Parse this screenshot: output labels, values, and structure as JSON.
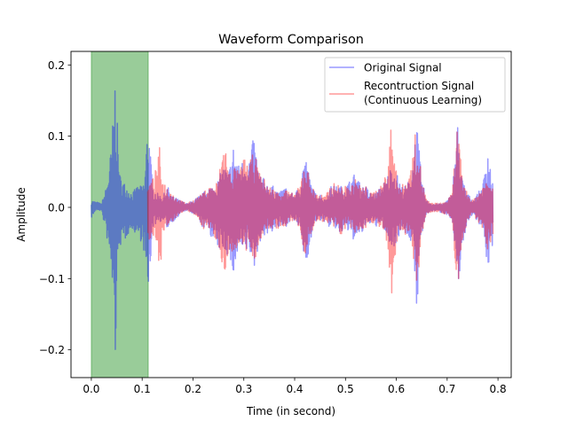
{
  "chart_data": {
    "type": "line",
    "title": "Waveform Comparison",
    "xlabel": "Time (in second)",
    "ylabel": "Amplitude",
    "xlim": [
      -0.04,
      0.826
    ],
    "ylim": [
      -0.239,
      0.219
    ],
    "xticks": [
      0.0,
      0.1,
      0.2,
      0.3,
      0.4,
      0.5,
      0.6,
      0.7,
      0.8
    ],
    "xtick_labels": [
      "0.0",
      "0.1",
      "0.2",
      "0.3",
      "0.4",
      "0.5",
      "0.6",
      "0.7",
      "0.8"
    ],
    "yticks": [
      -0.2,
      -0.1,
      0.0,
      0.1,
      0.2
    ],
    "ytick_labels": [
      "−0.2",
      "−0.1",
      "0.0",
      "0.1",
      "0.2"
    ],
    "grid": false,
    "legend_position": "top-right",
    "highlight_span": {
      "x_start": 0.0,
      "x_end": 0.112,
      "color": "#008000",
      "alpha": 0.4
    },
    "series": [
      {
        "name": "Original Signal",
        "color": "#0000ff",
        "alpha": 0.4,
        "envelope_format": "[time, max, min]",
        "envelope": [
          [
            0.0,
            0.01,
            -0.015
          ],
          [
            0.01,
            0.008,
            -0.003
          ],
          [
            0.02,
            0.005,
            -0.005
          ],
          [
            0.03,
            0.03,
            -0.04
          ],
          [
            0.04,
            0.09,
            -0.1
          ],
          [
            0.047,
            0.195,
            -0.22
          ],
          [
            0.055,
            0.05,
            -0.05
          ],
          [
            0.06,
            0.04,
            -0.06
          ],
          [
            0.07,
            0.03,
            -0.04
          ],
          [
            0.08,
            0.02,
            -0.03
          ],
          [
            0.09,
            0.03,
            -0.04
          ],
          [
            0.1,
            0.03,
            -0.05
          ],
          [
            0.105,
            0.04,
            -0.07
          ],
          [
            0.111,
            0.128,
            -0.14
          ],
          [
            0.115,
            0.1,
            -0.1
          ],
          [
            0.12,
            0.03,
            -0.03
          ],
          [
            0.13,
            0.02,
            -0.02
          ],
          [
            0.14,
            0.015,
            -0.02
          ],
          [
            0.15,
            0.03,
            -0.03
          ],
          [
            0.16,
            0.015,
            -0.02
          ],
          [
            0.17,
            0.012,
            -0.015
          ],
          [
            0.18,
            0.008,
            -0.006
          ],
          [
            0.19,
            0.005,
            -0.004
          ],
          [
            0.2,
            0.01,
            -0.01
          ],
          [
            0.21,
            0.015,
            -0.015
          ],
          [
            0.22,
            0.02,
            -0.03
          ],
          [
            0.23,
            0.03,
            -0.03
          ],
          [
            0.24,
            0.03,
            -0.05
          ],
          [
            0.25,
            0.04,
            -0.06
          ],
          [
            0.26,
            0.06,
            -0.06
          ],
          [
            0.27,
            0.05,
            -0.07
          ],
          [
            0.28,
            0.09,
            -0.1
          ],
          [
            0.29,
            0.06,
            -0.06
          ],
          [
            0.3,
            0.07,
            -0.07
          ],
          [
            0.31,
            0.07,
            -0.06
          ],
          [
            0.32,
            0.1,
            -0.09
          ],
          [
            0.33,
            0.05,
            -0.05
          ],
          [
            0.34,
            0.04,
            -0.04
          ],
          [
            0.35,
            0.03,
            -0.04
          ],
          [
            0.36,
            0.03,
            -0.03
          ],
          [
            0.37,
            0.02,
            -0.03
          ],
          [
            0.38,
            0.03,
            -0.03
          ],
          [
            0.39,
            0.02,
            -0.02
          ],
          [
            0.4,
            0.02,
            -0.02
          ],
          [
            0.41,
            0.03,
            -0.03
          ],
          [
            0.42,
            0.08,
            -0.08
          ],
          [
            0.43,
            0.04,
            -0.06
          ],
          [
            0.44,
            0.02,
            -0.02
          ],
          [
            0.45,
            0.02,
            -0.02
          ],
          [
            0.46,
            0.01,
            -0.02
          ],
          [
            0.47,
            0.03,
            -0.03
          ],
          [
            0.48,
            0.03,
            -0.03
          ],
          [
            0.49,
            0.03,
            -0.04
          ],
          [
            0.5,
            0.03,
            -0.03
          ],
          [
            0.51,
            0.04,
            -0.04
          ],
          [
            0.52,
            0.05,
            -0.05
          ],
          [
            0.53,
            0.03,
            -0.04
          ],
          [
            0.54,
            0.03,
            -0.03
          ],
          [
            0.55,
            0.02,
            -0.02
          ],
          [
            0.56,
            0.02,
            -0.03
          ],
          [
            0.57,
            0.03,
            -0.02
          ],
          [
            0.58,
            0.04,
            -0.04
          ],
          [
            0.59,
            0.06,
            -0.06
          ],
          [
            0.6,
            0.05,
            -0.05
          ],
          [
            0.61,
            0.03,
            -0.03
          ],
          [
            0.62,
            0.03,
            -0.04
          ],
          [
            0.63,
            0.05,
            -0.05
          ],
          [
            0.64,
            0.12,
            -0.146
          ],
          [
            0.65,
            0.04,
            -0.04
          ],
          [
            0.66,
            0.01,
            -0.01
          ],
          [
            0.67,
            0.005,
            -0.005
          ],
          [
            0.68,
            0.005,
            -0.005
          ],
          [
            0.69,
            0.005,
            -0.008
          ],
          [
            0.7,
            0.01,
            -0.01
          ],
          [
            0.71,
            0.02,
            -0.02
          ],
          [
            0.72,
            0.125,
            -0.12
          ],
          [
            0.73,
            0.04,
            -0.06
          ],
          [
            0.74,
            0.02,
            -0.02
          ],
          [
            0.75,
            0.01,
            -0.01
          ],
          [
            0.76,
            0.02,
            -0.02
          ],
          [
            0.77,
            0.03,
            -0.03
          ],
          [
            0.78,
            0.09,
            -0.09
          ],
          [
            0.79,
            0.03,
            -0.05
          ]
        ]
      },
      {
        "name": "Recontruction Signal\n(Continuous Learning)",
        "name_lines": [
          "Recontruction Signal",
          "(Continuous Learning)"
        ],
        "color": "#ff0000",
        "alpha": 0.4,
        "envelope_format": "[time, max, min]",
        "envelope": [
          [
            0.111,
            0.03,
            -0.05
          ],
          [
            0.12,
            0.04,
            -0.04
          ],
          [
            0.13,
            0.06,
            -0.05
          ],
          [
            0.135,
            0.09,
            -0.1
          ],
          [
            0.14,
            0.04,
            -0.04
          ],
          [
            0.15,
            0.03,
            -0.03
          ],
          [
            0.16,
            0.02,
            -0.02
          ],
          [
            0.17,
            0.012,
            -0.012
          ],
          [
            0.18,
            0.008,
            -0.006
          ],
          [
            0.19,
            0.006,
            -0.005
          ],
          [
            0.2,
            0.01,
            -0.01
          ],
          [
            0.21,
            0.015,
            -0.015
          ],
          [
            0.22,
            0.02,
            -0.03
          ],
          [
            0.23,
            0.03,
            -0.03
          ],
          [
            0.24,
            0.03,
            -0.04
          ],
          [
            0.25,
            0.04,
            -0.05
          ],
          [
            0.262,
            0.105,
            -0.11
          ],
          [
            0.27,
            0.05,
            -0.06
          ],
          [
            0.28,
            0.06,
            -0.07
          ],
          [
            0.29,
            0.05,
            -0.05
          ],
          [
            0.3,
            0.07,
            -0.07
          ],
          [
            0.31,
            0.06,
            -0.06
          ],
          [
            0.32,
            0.08,
            -0.08
          ],
          [
            0.33,
            0.05,
            -0.05
          ],
          [
            0.34,
            0.04,
            -0.04
          ],
          [
            0.35,
            0.03,
            -0.03
          ],
          [
            0.36,
            0.025,
            -0.03
          ],
          [
            0.37,
            0.02,
            -0.03
          ],
          [
            0.38,
            0.03,
            -0.03
          ],
          [
            0.39,
            0.02,
            -0.02
          ],
          [
            0.4,
            0.02,
            -0.02
          ],
          [
            0.41,
            0.03,
            -0.03
          ],
          [
            0.42,
            0.07,
            -0.07
          ],
          [
            0.43,
            0.04,
            -0.05
          ],
          [
            0.44,
            0.02,
            -0.02
          ],
          [
            0.45,
            0.02,
            -0.02
          ],
          [
            0.46,
            0.015,
            -0.02
          ],
          [
            0.47,
            0.03,
            -0.03
          ],
          [
            0.48,
            0.035,
            -0.03
          ],
          [
            0.49,
            0.03,
            -0.04
          ],
          [
            0.5,
            0.03,
            -0.03
          ],
          [
            0.51,
            0.03,
            -0.03
          ],
          [
            0.52,
            0.04,
            -0.04
          ],
          [
            0.53,
            0.03,
            -0.03
          ],
          [
            0.54,
            0.03,
            -0.03
          ],
          [
            0.55,
            0.02,
            -0.02
          ],
          [
            0.56,
            0.025,
            -0.025
          ],
          [
            0.57,
            0.03,
            -0.03
          ],
          [
            0.58,
            0.05,
            -0.05
          ],
          [
            0.59,
            0.12,
            -0.14
          ],
          [
            0.6,
            0.05,
            -0.06
          ],
          [
            0.61,
            0.03,
            -0.03
          ],
          [
            0.62,
            0.04,
            -0.04
          ],
          [
            0.63,
            0.06,
            -0.05
          ],
          [
            0.64,
            0.12,
            -0.12
          ],
          [
            0.65,
            0.04,
            -0.04
          ],
          [
            0.66,
            0.01,
            -0.01
          ],
          [
            0.67,
            0.006,
            -0.006
          ],
          [
            0.68,
            0.006,
            -0.006
          ],
          [
            0.69,
            0.006,
            -0.008
          ],
          [
            0.7,
            0.01,
            -0.01
          ],
          [
            0.71,
            0.02,
            -0.02
          ],
          [
            0.72,
            0.12,
            -0.12
          ],
          [
            0.73,
            0.04,
            -0.05
          ],
          [
            0.74,
            0.02,
            -0.02
          ],
          [
            0.75,
            0.01,
            -0.01
          ],
          [
            0.76,
            0.02,
            -0.02
          ],
          [
            0.77,
            0.03,
            -0.03
          ],
          [
            0.78,
            0.05,
            -0.06
          ],
          [
            0.79,
            0.03,
            -0.04
          ]
        ]
      }
    ]
  }
}
